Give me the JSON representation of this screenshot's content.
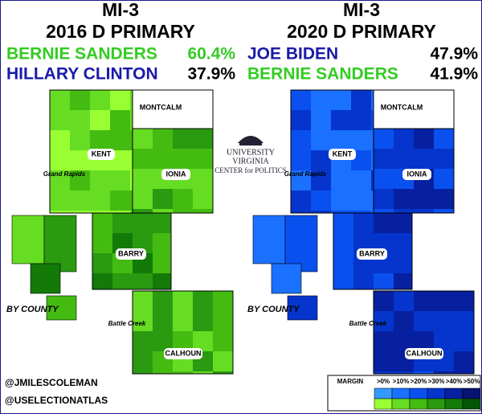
{
  "left": {
    "title": "MI-3",
    "subtitle": "2016 D PRIMARY",
    "results": [
      {
        "name": "BERNIE SANDERS",
        "pct": "60.4%"
      },
      {
        "name": "HILLARY CLINTON",
        "pct": "37.9%"
      }
    ]
  },
  "right": {
    "title": "MI-3",
    "subtitle": "2020 D PRIMARY",
    "results": [
      {
        "name": "JOE BIDEN",
        "pct": "47.9%"
      },
      {
        "name": "BERNIE SANDERS",
        "pct": "41.9%"
      }
    ]
  },
  "map_labels": {
    "montcalm": "MONTCALM",
    "kent": "KENT",
    "grand_rapids": "Grand Rapids",
    "ionia": "IONIA",
    "barry": "BARRY",
    "calhoun": "CALHOUN",
    "battle_creek": "Battle Creek",
    "by_county": "BY COUNTY"
  },
  "logo": {
    "line1": "UNIVERSITY",
    "line2": "VIRGINIA",
    "line3": "CENTER for POLITICS"
  },
  "credits": [
    "@JMILESCOLEMAN",
    "@USELECTIONATLAS"
  ],
  "legend": {
    "title": "MARGIN",
    "bins": [
      ">0%",
      ">10%",
      ">20%",
      ">30%",
      ">40%",
      ">50%"
    ]
  }
}
